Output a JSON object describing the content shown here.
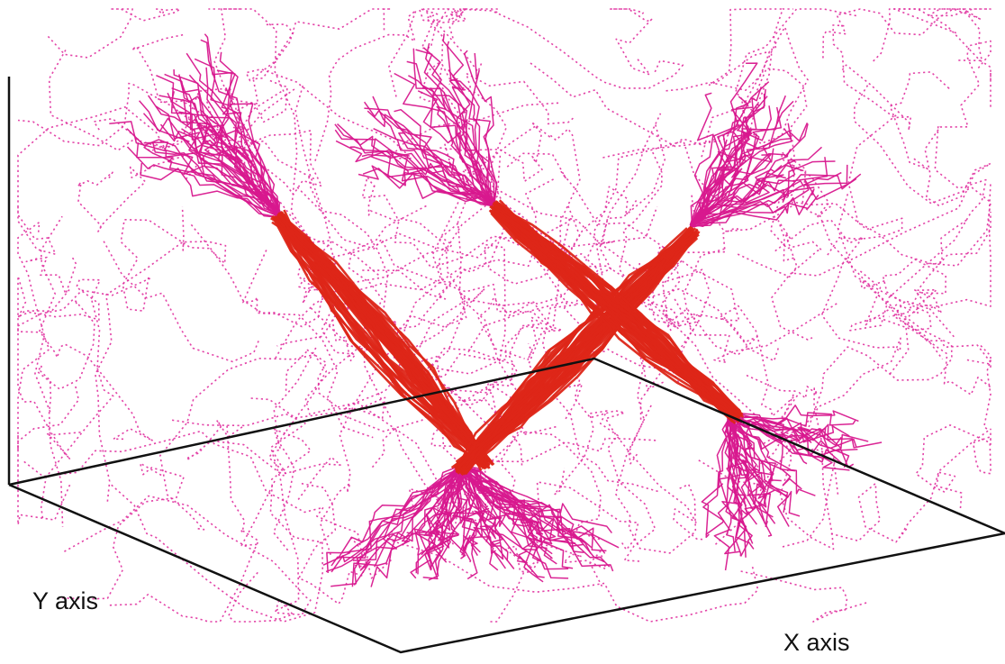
{
  "figure": {
    "axis_labels": {
      "x": "X axis",
      "y": "Y axis"
    },
    "colors": {
      "background": "#ffffff",
      "axes": "#111111",
      "noise_trajectories": "#e0309f",
      "end_fans": "#d8188e",
      "bundle_core": "#dd2618"
    },
    "structure": {
      "bundles": 2,
      "end_fans_per_bundle": 2,
      "background_style": "dotted",
      "fan_style": "solid",
      "core_style": "solid"
    }
  }
}
